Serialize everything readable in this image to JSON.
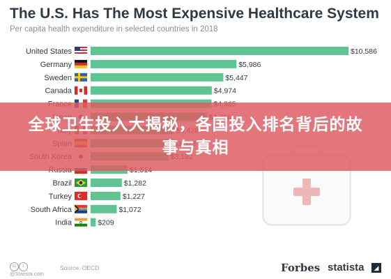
{
  "title": "The U.S. Has The Most Expensive Healthcare System",
  "subtitle": "Per capita health expenditure in selected countries in 2018",
  "banner_text": "全球卫生投入大揭秘，各国投入排名背后的故事与真相",
  "footer": {
    "credit": "@Statista.com",
    "source": "Source: OECD",
    "brand_forbes": "Forbes",
    "brand_statista": "statista"
  },
  "colors": {
    "bar": "#5fc492",
    "text": "#2f3a45",
    "banner": "#de5c60"
  },
  "chart_data": {
    "type": "bar",
    "orientation": "horizontal",
    "title": "The U.S. Has The Most Expensive Healthcare System",
    "subtitle": "Per capita health expenditure in selected countries in 2018",
    "categories": [
      "United States",
      "Germany",
      "Sweden",
      "Canada",
      "France",
      "Japan",
      "Italy",
      "Spain",
      "South Korea",
      "Russia",
      "Brazil",
      "Turkey",
      "South Africa",
      "India"
    ],
    "values": [
      10586,
      5986,
      5447,
      4974,
      4965,
      4766,
      3428,
      3323,
      3192,
      1514,
      1282,
      1227,
      1072,
      209
    ],
    "labels": [
      "$10,586",
      "$5,986",
      "$5,447",
      "$4,974",
      "$4,965",
      "$4,766",
      "$3,428",
      "$3,323",
      "$3,192",
      "$1,514",
      "$1,282",
      "$1,227",
      "$1,072",
      "$209"
    ],
    "flags": [
      "us-flag-icon",
      "germany-flag-icon",
      "sweden-flag-icon",
      "canada-flag-icon",
      "france-flag-icon",
      "japan-flag-icon",
      "italy-flag-icon",
      "spain-flag-icon",
      "south-korea-flag-icon",
      "russia-flag-icon",
      "brazil-flag-icon",
      "turkey-flag-icon",
      "south-africa-flag-icon",
      "india-flag-icon"
    ],
    "xlim": [
      0,
      10586
    ],
    "grid": false,
    "legend": "none"
  }
}
